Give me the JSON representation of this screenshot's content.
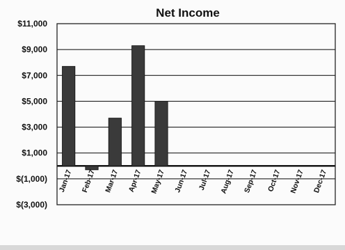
{
  "chart_data": {
    "type": "bar",
    "title": "Net Income",
    "categories": [
      "Jan-17",
      "Feb-17",
      "Mar-17",
      "Apr-17",
      "May-17",
      "Jun-17",
      "Jul-17",
      "Aug-17",
      "Sep-17",
      "Oct-17",
      "Nov-17",
      "Dec-17"
    ],
    "values": [
      7700,
      -300,
      3700,
      9300,
      5000,
      null,
      null,
      null,
      null,
      null,
      null,
      null
    ],
    "ylim": [
      -3000,
      11000
    ],
    "yticks": [
      11000,
      9000,
      7000,
      5000,
      3000,
      1000,
      -1000,
      -3000
    ],
    "ytick_labels": [
      "$11,000",
      "$9,000",
      "$7,000",
      "$5,000",
      "$3,000",
      "$1,000",
      "$(1,000)",
      "$(3,000)"
    ],
    "grid": true,
    "bar_color": "#3a3a3a"
  }
}
